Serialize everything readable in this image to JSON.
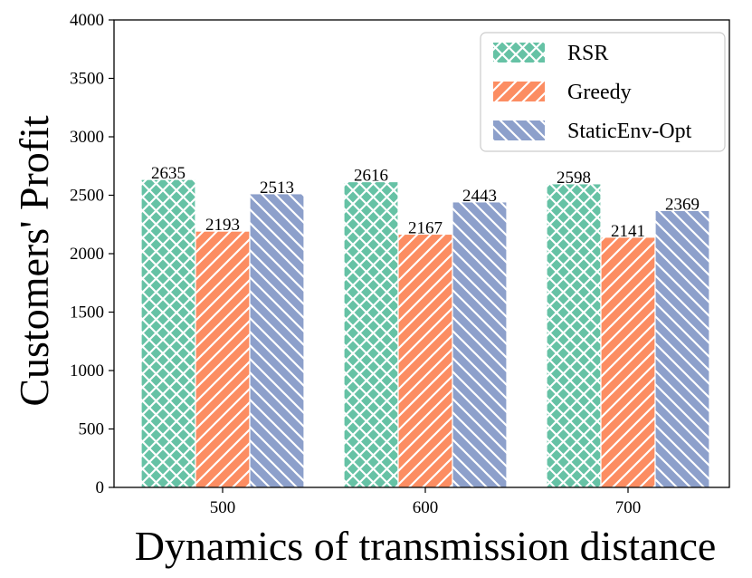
{
  "chart_data": {
    "type": "bar",
    "title": "",
    "xlabel": "Dynamics of transmission distance",
    "ylabel": "Customers' Profit",
    "categories": [
      "500",
      "600",
      "700"
    ],
    "series": [
      {
        "name": "RSR",
        "values": [
          2635,
          2616,
          2598
        ],
        "color": "#66c2a5",
        "hatch": "crosshatch"
      },
      {
        "name": "Greedy",
        "values": [
          2193,
          2167,
          2141
        ],
        "color": "#fc8d62",
        "hatch": "forward-diagonal"
      },
      {
        "name": "StaticEnv-Opt",
        "values": [
          2513,
          2443,
          2369
        ],
        "color": "#8da0cb",
        "hatch": "back-diagonal"
      }
    ],
    "ylim": [
      0,
      4000
    ],
    "yticks": [
      0,
      500,
      1000,
      1500,
      2000,
      2500,
      3000,
      3500,
      4000
    ],
    "grid": false,
    "legend_position": "top-right"
  }
}
